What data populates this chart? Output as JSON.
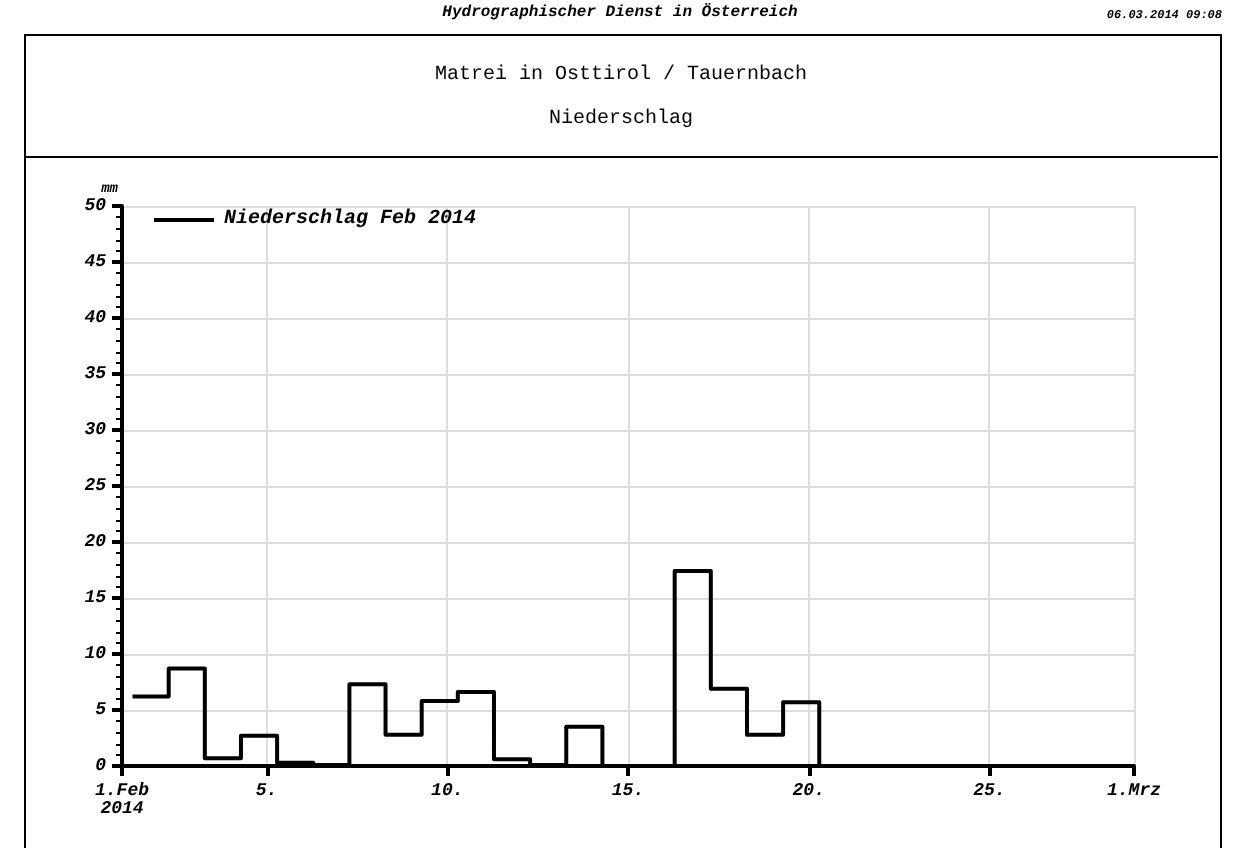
{
  "chart_data": {
    "type": "step",
    "title": "Matrei in Osttirol / Tauernbach",
    "subtitle": "Niederschlag",
    "ylabel": "mm",
    "annotations": [
      "Hydrographischer Dienst in Österreich",
      "06.03.2014 09:08"
    ],
    "x": [
      "2014-02-01T07:00",
      "2014-02-02T07:00",
      "2014-02-03T07:00",
      "2014-02-04T07:00",
      "2014-02-05T07:00",
      "2014-02-06T07:00",
      "2014-02-07T07:00",
      "2014-02-08T07:00",
      "2014-02-09T07:00",
      "2014-02-10T07:00",
      "2014-02-11T07:00",
      "2014-02-12T07:00",
      "2014-02-13T07:00",
      "2014-02-14T07:00",
      "2014-02-15T07:00",
      "2014-02-16T07:00",
      "2014-02-17T07:00",
      "2014-02-18T07:00",
      "2014-02-19T07:00",
      "2014-02-20T07:00",
      "2014-02-21T07:00",
      "2014-02-22T07:00",
      "2014-02-23T07:00",
      "2014-02-24T07:00",
      "2014-02-25T07:00",
      "2014-02-26T07:00",
      "2014-02-27T07:00",
      "2014-02-28T07:00"
    ],
    "series": [
      {
        "name": "Niederschlag Feb 2014",
        "color": "#000000",
        "values": [
          6.2,
          8.7,
          0.7,
          2.7,
          0.3,
          0.1,
          7.3,
          2.8,
          5.8,
          6.6,
          0.6,
          0.1,
          3.5,
          0,
          0,
          17.4,
          6.9,
          2.8,
          5.7,
          0,
          0,
          0,
          0,
          0,
          0,
          0,
          0,
          0
        ]
      }
    ],
    "xlim": [
      "2014-02-01",
      "2014-03-01"
    ],
    "xticks": [
      {
        "value": "2014-02-01",
        "label": "1.Feb\n2014"
      },
      {
        "value": "2014-02-05",
        "label": "5."
      },
      {
        "value": "2014-02-10",
        "label": "10."
      },
      {
        "value": "2014-02-15",
        "label": "15."
      },
      {
        "value": "2014-02-20",
        "label": "20."
      },
      {
        "value": "2014-02-25",
        "label": "25."
      },
      {
        "value": "2014-03-01",
        "label": "1.Mrz"
      }
    ],
    "ylim": [
      0,
      50
    ],
    "yticks": [
      0,
      5,
      10,
      15,
      20,
      25,
      30,
      35,
      40,
      45,
      50
    ],
    "grid": true,
    "legend": "top left",
    "marker": "none",
    "line_style": "solid"
  }
}
